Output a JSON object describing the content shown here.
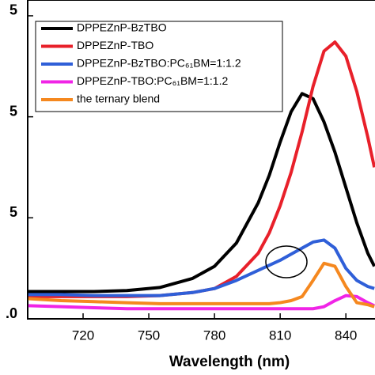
{
  "chart_data": {
    "type": "line",
    "x_label": "Wavelength (nm)",
    "x": [
      695,
      710,
      725,
      740,
      755,
      770,
      780,
      790,
      800,
      805,
      810,
      815,
      820,
      825,
      830,
      835,
      840,
      845,
      850,
      853
    ],
    "series": [
      {
        "name": "DPPEZnP-BzTBO",
        "color": "#000000",
        "values": [
          0.27,
          0.27,
          0.27,
          0.28,
          0.31,
          0.4,
          0.52,
          0.75,
          1.15,
          1.42,
          1.75,
          2.05,
          2.23,
          2.18,
          1.95,
          1.65,
          1.3,
          0.95,
          0.65,
          0.52
        ]
      },
      {
        "name": "DPPEZnP-TBO",
        "color": "#e8202a",
        "values": [
          0.22,
          0.22,
          0.22,
          0.22,
          0.23,
          0.26,
          0.3,
          0.42,
          0.65,
          0.85,
          1.12,
          1.45,
          1.85,
          2.3,
          2.65,
          2.74,
          2.6,
          2.25,
          1.8,
          1.5
        ]
      },
      {
        "name": "DPPEZnP-BzTBO:PC₆₁BM=1:1.2",
        "color": "#2f5fd8",
        "values": [
          0.24,
          0.24,
          0.23,
          0.23,
          0.23,
          0.26,
          0.3,
          0.38,
          0.48,
          0.53,
          0.58,
          0.64,
          0.7,
          0.76,
          0.78,
          0.7,
          0.5,
          0.38,
          0.32,
          0.3
        ]
      },
      {
        "name": "DPPEZnP-TBO:PC₆₁BM=1:1.2",
        "color": "#f024e6",
        "values": [
          0.13,
          0.12,
          0.11,
          0.1,
          0.1,
          0.1,
          0.1,
          0.1,
          0.1,
          0.1,
          0.1,
          0.1,
          0.1,
          0.1,
          0.12,
          0.18,
          0.23,
          0.22,
          0.16,
          0.13
        ]
      },
      {
        "name": "the ternary blend",
        "color": "#f5881f",
        "values": [
          0.2,
          0.18,
          0.17,
          0.16,
          0.15,
          0.15,
          0.15,
          0.15,
          0.15,
          0.15,
          0.16,
          0.18,
          0.22,
          0.38,
          0.55,
          0.52,
          0.32,
          0.16,
          0.14,
          0.12
        ]
      }
    ],
    "xlim": [
      694.7,
      853.3
    ],
    "xticks": [
      720,
      750,
      780,
      810,
      840
    ],
    "ylim": [
      0,
      3.15
    ],
    "yticks": [
      {
        "value": 0,
        "label": ".0"
      },
      {
        "value": 1,
        "label": "5"
      },
      {
        "value": 2,
        "label": "5"
      },
      {
        "value": 3,
        "label": "5"
      }
    ]
  }
}
